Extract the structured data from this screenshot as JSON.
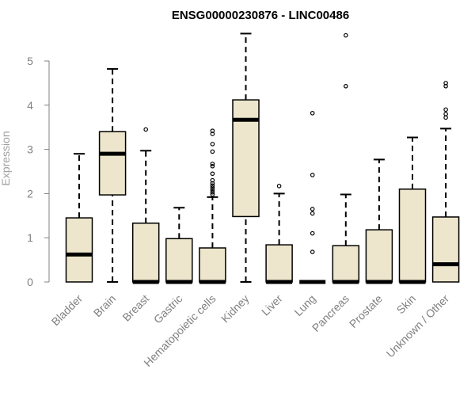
{
  "chart_data": {
    "type": "boxplot",
    "title": "ENSG00000230876 - LINC00486",
    "xlabel": "",
    "ylabel": "Expression",
    "ylim": [
      0,
      5.5
    ],
    "yticks": [
      0,
      1,
      2,
      3,
      4,
      5
    ],
    "grid": false,
    "legend": "none",
    "colors": {
      "box_fill": "#ede6cc",
      "stroke": "#000000",
      "axis": "#808080",
      "title": "#000000"
    },
    "categories": [
      "Bladder",
      "Brain",
      "Breast",
      "Gastric",
      "Hematopoietic cells",
      "Kidney",
      "Liver",
      "Lung",
      "Pancreas",
      "Prostate",
      "Skin",
      "Unknown / Other"
    ],
    "boxes": [
      {
        "category": "Bladder",
        "whisker_low": 0,
        "q1": 0,
        "median": 0.62,
        "q3": 1.45,
        "whisker_high": 2.9,
        "outliers": []
      },
      {
        "category": "Brain",
        "whisker_low": 0,
        "q1": 1.97,
        "median": 2.9,
        "q3": 3.4,
        "whisker_high": 4.82,
        "outliers": []
      },
      {
        "category": "Breast",
        "whisker_low": 0,
        "q1": 0,
        "median": 0,
        "q3": 1.33,
        "whisker_high": 2.97,
        "outliers": [
          3.45
        ]
      },
      {
        "category": "Gastric",
        "whisker_low": 0,
        "q1": 0,
        "median": 0,
        "q3": 0.98,
        "whisker_high": 1.68,
        "outliers": []
      },
      {
        "category": "Hematopoietic cells",
        "whisker_low": 0,
        "q1": 0,
        "median": 0,
        "q3": 0.77,
        "whisker_high": 1.92,
        "outliers": [
          1.98,
          2.03,
          2.08,
          2.13,
          2.18,
          2.23,
          2.3,
          2.45,
          2.62,
          2.67,
          2.95,
          3.12,
          3.35,
          3.42
        ]
      },
      {
        "category": "Kidney",
        "whisker_low": 0,
        "q1": 1.48,
        "median": 3.67,
        "q3": 4.12,
        "whisker_high": 5.62,
        "outliers": []
      },
      {
        "category": "Liver",
        "whisker_low": 0,
        "q1": 0,
        "median": 0,
        "q3": 0.84,
        "whisker_high": 2.0,
        "outliers": [
          2.17
        ]
      },
      {
        "category": "Lung",
        "whisker_low": 0,
        "q1": 0,
        "median": 0,
        "q3": 0,
        "whisker_high": 0,
        "outliers": [
          0.68,
          1.1,
          1.55,
          1.65,
          2.42,
          3.82
        ]
      },
      {
        "category": "Pancreas",
        "whisker_low": 0,
        "q1": 0,
        "median": 0,
        "q3": 0.82,
        "whisker_high": 1.98,
        "outliers": [
          4.43,
          5.58
        ]
      },
      {
        "category": "Prostate",
        "whisker_low": 0,
        "q1": 0,
        "median": 0,
        "q3": 1.18,
        "whisker_high": 2.77,
        "outliers": []
      },
      {
        "category": "Skin",
        "whisker_low": 0,
        "q1": 0,
        "median": 0,
        "q3": 2.1,
        "whisker_high": 3.27,
        "outliers": []
      },
      {
        "category": "Unknown / Other",
        "whisker_low": 0,
        "q1": 0,
        "median": 0.4,
        "q3": 1.47,
        "whisker_high": 3.47,
        "outliers": [
          3.72,
          3.8,
          3.9,
          4.43,
          4.5
        ]
      }
    ]
  }
}
